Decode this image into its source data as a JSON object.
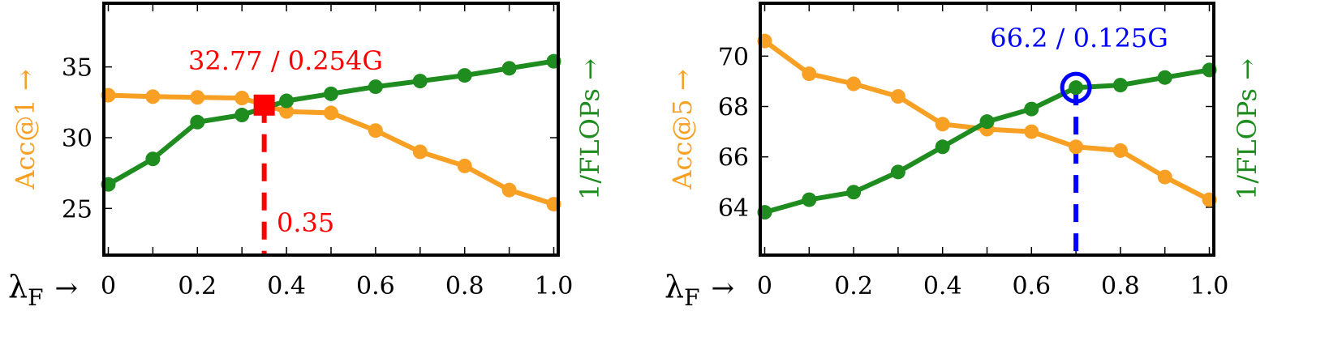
{
  "x_axis_label": "λF →",
  "colors": {
    "accuracy": "#F7A024",
    "flops": "#1E8C1E",
    "left_marker": "#FF0000",
    "right_marker": "#0000FF"
  },
  "chart_data": [
    {
      "type": "line",
      "title": "",
      "xlabel": "λF →",
      "x": [
        0,
        0.1,
        0.2,
        0.3,
        0.4,
        0.5,
        0.6,
        0.7,
        0.8,
        0.9,
        1.0
      ],
      "x_tick_labels": [
        "0",
        "0.2",
        "0.4",
        "0.6",
        "0.8",
        "1.0"
      ],
      "xlim": [
        -0.01,
        1.01
      ],
      "ylabel": "Acc@1 →",
      "ylim": [
        21.7,
        39.5
      ],
      "y_tick_labels": [
        "25",
        "30",
        "35"
      ],
      "y2label": "1/FLOPs →",
      "series": [
        {
          "name": "Acc@1",
          "axis": "left",
          "color": "#F7A024",
          "values": [
            33.0,
            32.9,
            32.85,
            32.8,
            31.85,
            31.75,
            30.5,
            29.0,
            28.0,
            26.3,
            25.3
          ]
        },
        {
          "name": "1/FLOPs",
          "axis": "left",
          "color": "#1E8C1E",
          "values": [
            26.7,
            28.5,
            31.1,
            31.6,
            32.6,
            33.1,
            33.6,
            34.0,
            34.4,
            34.9,
            35.4
          ]
        }
      ],
      "annotation": {
        "marker": "square",
        "color": "#FF0000",
        "x": 0.35,
        "y": 32.3,
        "label": "32.77 / 0.254G",
        "x_label": "0.35"
      },
      "grid": false
    },
    {
      "type": "line",
      "title": "",
      "xlabel": "λF →",
      "x": [
        0,
        0.1,
        0.2,
        0.3,
        0.4,
        0.5,
        0.6,
        0.7,
        0.8,
        0.9,
        1.0
      ],
      "x_tick_labels": [
        "0",
        "0.2",
        "0.4",
        "0.6",
        "0.8",
        "1.0"
      ],
      "xlim": [
        -0.01,
        1.01
      ],
      "ylabel": "Acc@5 →",
      "ylim": [
        62.1,
        72.1
      ],
      "y_tick_labels": [
        "64",
        "66",
        "68",
        "70"
      ],
      "y2label": "1/FLOPs →",
      "series": [
        {
          "name": "Acc@5",
          "axis": "left",
          "color": "#F7A024",
          "values": [
            70.6,
            69.3,
            68.9,
            68.4,
            67.3,
            67.1,
            67.0,
            66.4,
            66.25,
            65.2,
            64.3
          ]
        },
        {
          "name": "1/FLOPs",
          "axis": "left",
          "color": "#1E8C1E",
          "values": [
            63.8,
            64.3,
            64.6,
            65.4,
            66.4,
            67.4,
            67.9,
            68.75,
            68.85,
            69.15,
            69.45
          ]
        }
      ],
      "annotation": {
        "marker": "circle",
        "color": "#0000FF",
        "x": 0.7,
        "y": 68.75,
        "label": "66.2 / 0.125G"
      },
      "grid": false
    }
  ]
}
